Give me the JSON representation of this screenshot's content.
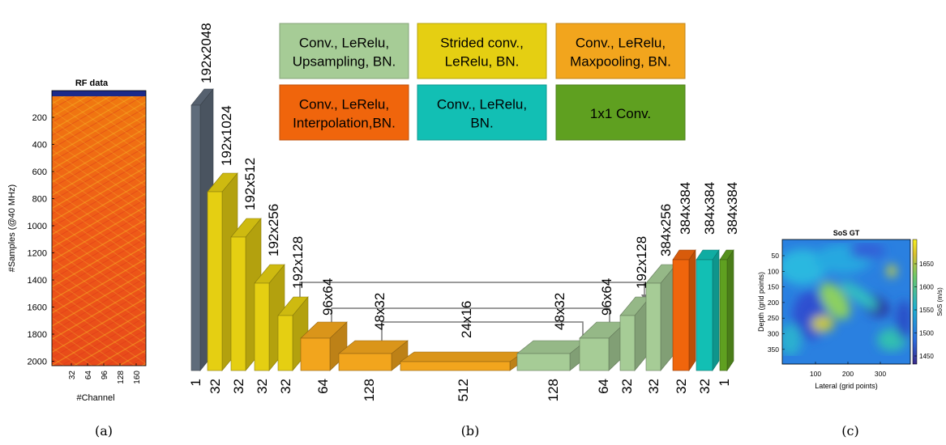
{
  "panels": [
    {
      "id": "a",
      "caption": "(a)"
    },
    {
      "id": "b",
      "caption": "(b)"
    },
    {
      "id": "c",
      "caption": "(c)"
    }
  ],
  "rf_panel": {
    "title": "RF data",
    "xlabel": "#Channel",
    "ylabel": "#Samples (@40 MHz)",
    "xticks": [
      "32",
      "64",
      "96",
      "128",
      "160"
    ],
    "yticks": [
      "200",
      "400",
      "600",
      "800",
      "1000",
      "1200",
      "1400",
      "1600",
      "1800",
      "2000"
    ]
  },
  "sos_panel": {
    "title": "SoS GT",
    "xlabel": "Lateral (grid points)",
    "ylabel": "Depth (grid points)",
    "colorbar_label": "SoS (m/s)",
    "xticks": [
      "100",
      "200",
      "300"
    ],
    "yticks": [
      "50",
      "100",
      "150",
      "200",
      "250",
      "300",
      "350"
    ],
    "colorbar_ticks": [
      "1650",
      "1600",
      "1550",
      "1500",
      "1450"
    ]
  },
  "legend": [
    {
      "label_lines": [
        "Conv., LeRelu,",
        "Upsampling, BN."
      ],
      "color": "#a6cc96"
    },
    {
      "label_lines": [
        "Strided conv.,",
        "LeRelu, BN."
      ],
      "color": "#e5cf12"
    },
    {
      "label_lines": [
        "Conv., LeRelu,",
        "Maxpooling, BN."
      ],
      "color": "#f2a51d"
    },
    {
      "label_lines": [
        "Conv., LeRelu,",
        "Interpolation,BN."
      ],
      "color": "#f0650c"
    },
    {
      "label_lines": [
        "Conv., LeRelu,",
        "BN."
      ],
      "color": "#12bfb4"
    },
    {
      "label_lines": [
        "1x1 Conv."
      ],
      "color": "#5fa020"
    }
  ],
  "blocks": [
    {
      "size": "192x2048",
      "channels": "1",
      "color": "#5f6c7b"
    },
    {
      "size": "192x1024",
      "channels": "32",
      "color": "#e5cf12"
    },
    {
      "size": "192x512",
      "channels": "32",
      "color": "#e5cf12"
    },
    {
      "size": "192x256",
      "channels": "32",
      "color": "#e5cf12"
    },
    {
      "size": "192x128",
      "channels": "32",
      "color": "#e5cf12"
    },
    {
      "size": "96x64",
      "channels": "64",
      "color": "#f2a51d"
    },
    {
      "size": "48x32",
      "channels": "128",
      "color": "#f2a51d"
    },
    {
      "size": "24x16",
      "channels": "512",
      "color": "#f2a51d"
    },
    {
      "size": "48x32",
      "channels": "128",
      "color": "#a6cc96"
    },
    {
      "size": "96x64",
      "channels": "64",
      "color": "#a6cc96"
    },
    {
      "size": "192x128",
      "channels": "32",
      "color": "#a6cc96"
    },
    {
      "size": "384x256",
      "channels": "32",
      "color": "#a6cc96"
    },
    {
      "size": "384x384",
      "channels": "32",
      "color": "#f0650c"
    },
    {
      "size": "384x384",
      "channels": "32",
      "color": "#12bfb4"
    },
    {
      "size": "384x384",
      "channels": "1",
      "color": "#5fa020"
    }
  ]
}
